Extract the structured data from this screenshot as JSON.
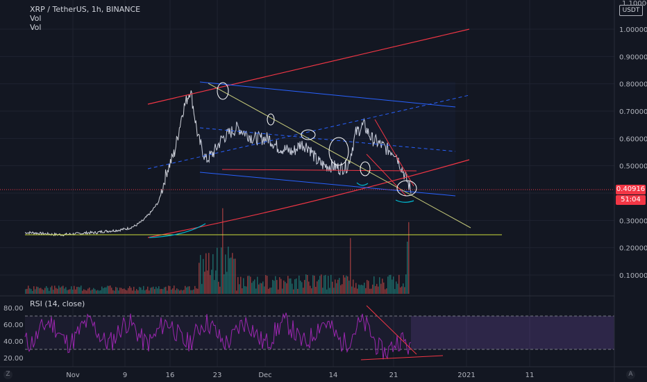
{
  "header": {
    "title": "XRP / TetherUS, 1h, BINANCE",
    "indicator_1": "Vol",
    "indicator_2": "Vol"
  },
  "price_scale": {
    "currency": "USDT",
    "top_partial_label": "1.10000",
    "labels": [
      "1.00000",
      "0.90000",
      "0.80000",
      "0.70000",
      "0.60000",
      "0.50000",
      "0.30000",
      "0.20000",
      "0.10000"
    ],
    "current_price": "0.40916",
    "countdown": "51:04"
  },
  "rsi": {
    "label": "RSI (14, close)",
    "scale_labels": [
      "80.00",
      "60.00",
      "40.00",
      "20.00"
    ],
    "upper_band": 70,
    "lower_band": 30
  },
  "time_axis": {
    "labels": [
      "Nov",
      "9",
      "16",
      "23",
      "Dec",
      "14",
      "21",
      "2021",
      "11"
    ]
  },
  "corner_buttons": {
    "left": "Z",
    "right": "A"
  },
  "colors": {
    "background": "#131722",
    "candles_up": "#26a69a",
    "candles_down": "#ef5350",
    "trend_red": "#f23645",
    "trend_blue": "#2962ff",
    "rsi_line": "#9c27b0",
    "support_line": "#cddc39",
    "highlight": "#00bcd4"
  },
  "chart_data": {
    "type": "line",
    "series": [
      {
        "values_per_day": [
          0.255,
          0.255,
          0.252,
          0.25,
          0.248,
          0.248,
          0.25,
          0.252,
          0.255,
          0.255,
          0.26,
          0.262,
          0.265,
          0.27,
          0.28,
          0.3,
          0.33,
          0.37,
          0.48,
          0.55,
          0.7,
          0.78,
          0.6,
          0.52,
          0.55,
          0.6,
          0.62,
          0.64,
          0.62,
          0.6,
          0.6,
          0.6,
          0.57,
          0.56,
          0.55,
          0.58,
          0.57,
          0.52,
          0.5,
          0.5,
          0.49,
          0.5,
          0.62,
          0.65,
          0.6,
          0.58,
          0.56,
          0.55,
          0.48,
          0.41
        ]
      }
    ],
    "ylim": [
      0.0,
      1.1
    ],
    "current_price": 0.40916,
    "volume": {
      "label": "Vol",
      "max_relative": 1.0
    },
    "rsi": {
      "label": "RSI (14, close)",
      "ylim": [
        10,
        90
      ],
      "bands": [
        30,
        70
      ]
    }
  }
}
